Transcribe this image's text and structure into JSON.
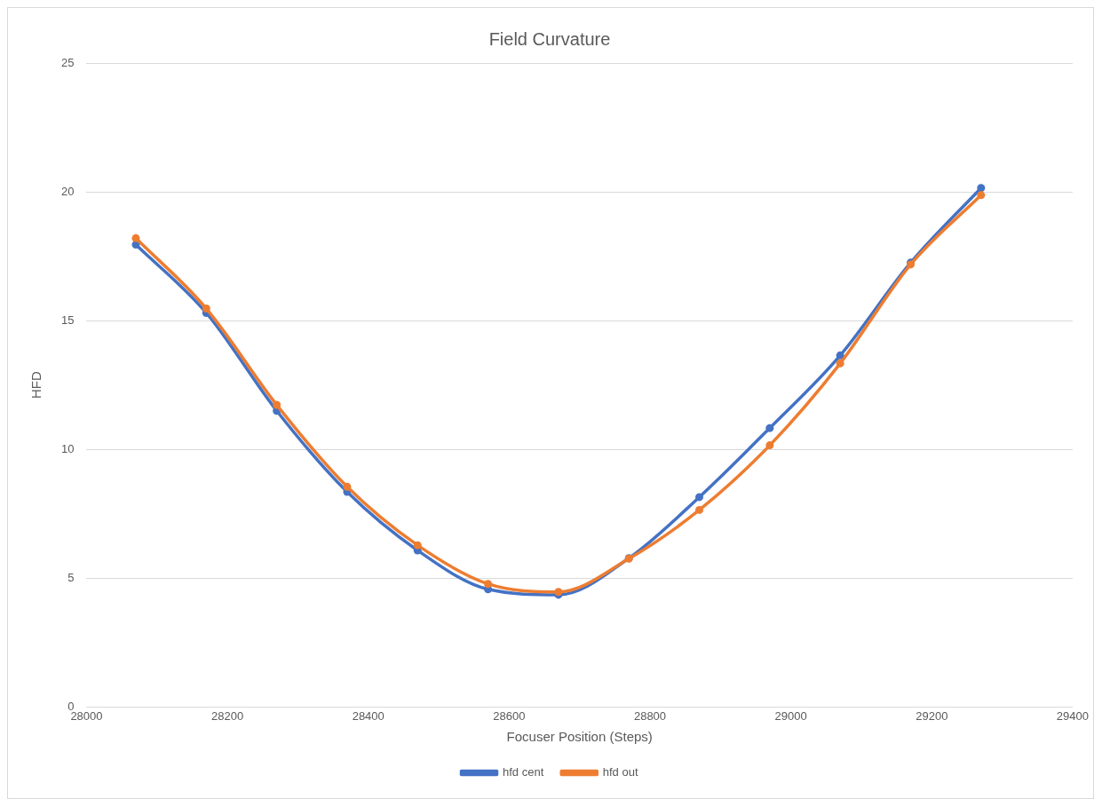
{
  "chart_data": {
    "type": "line",
    "title": "Field Curvature",
    "xlabel": "Focuser Position (Steps)",
    "ylabel": "HFD",
    "x": [
      28070,
      28170,
      28270,
      28370,
      28470,
      28570,
      28670,
      28770,
      28870,
      28970,
      29070,
      29170,
      29270
    ],
    "series": [
      {
        "name": "hfd cent",
        "color": "#4472c4",
        "values": [
          17.95,
          15.3,
          11.5,
          8.35,
          6.08,
          4.57,
          4.36,
          5.78,
          8.15,
          10.83,
          13.65,
          17.25,
          20.15
        ]
      },
      {
        "name": "hfd out",
        "color": "#ed7d31",
        "values": [
          18.2,
          15.47,
          11.73,
          8.55,
          6.28,
          4.78,
          4.47,
          5.76,
          7.65,
          10.16,
          13.34,
          17.18,
          19.87
        ]
      }
    ],
    "xlim": [
      28000,
      29400
    ],
    "xticks": [
      28000,
      28200,
      28400,
      28600,
      28800,
      29000,
      29200,
      29400
    ],
    "ylim": [
      0,
      25
    ],
    "yticks": [
      0,
      5,
      10,
      15,
      20,
      25
    ],
    "grid": "y",
    "legend": "bottom",
    "marker": "circle",
    "line_style": "solid"
  }
}
